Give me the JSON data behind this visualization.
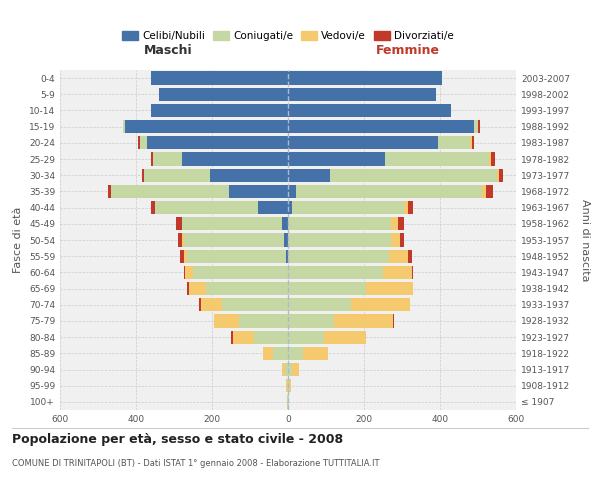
{
  "age_groups": [
    "100+",
    "95-99",
    "90-94",
    "85-89",
    "80-84",
    "75-79",
    "70-74",
    "65-69",
    "60-64",
    "55-59",
    "50-54",
    "45-49",
    "40-44",
    "35-39",
    "30-34",
    "25-29",
    "20-24",
    "15-19",
    "10-14",
    "5-9",
    "0-4"
  ],
  "birth_years": [
    "≤ 1907",
    "1908-1912",
    "1913-1917",
    "1918-1922",
    "1923-1927",
    "1928-1932",
    "1933-1937",
    "1938-1942",
    "1943-1947",
    "1948-1952",
    "1953-1957",
    "1958-1962",
    "1963-1967",
    "1968-1972",
    "1973-1977",
    "1978-1982",
    "1983-1987",
    "1988-1992",
    "1993-1997",
    "1998-2002",
    "2003-2007"
  ],
  "males": {
    "celibi": [
      0,
      0,
      0,
      0,
      0,
      0,
      0,
      0,
      0,
      5,
      10,
      15,
      80,
      155,
      205,
      280,
      370,
      430,
      360,
      340,
      360
    ],
    "coniugati": [
      2,
      3,
      8,
      40,
      90,
      130,
      175,
      215,
      250,
      260,
      265,
      265,
      270,
      310,
      175,
      75,
      20,
      5,
      0,
      0,
      0
    ],
    "vedovi": [
      0,
      2,
      8,
      25,
      55,
      65,
      55,
      45,
      20,
      10,
      5,
      0,
      0,
      0,
      0,
      0,
      0,
      0,
      0,
      0,
      0
    ],
    "divorziati": [
      0,
      0,
      0,
      0,
      5,
      0,
      5,
      5,
      5,
      10,
      10,
      15,
      10,
      10,
      5,
      5,
      5,
      0,
      0,
      0,
      0
    ]
  },
  "females": {
    "nubili": [
      0,
      0,
      0,
      0,
      0,
      0,
      0,
      0,
      0,
      0,
      0,
      0,
      10,
      20,
      110,
      255,
      395,
      490,
      430,
      390,
      405
    ],
    "coniugate": [
      2,
      3,
      10,
      40,
      95,
      120,
      165,
      205,
      250,
      265,
      270,
      270,
      295,
      490,
      440,
      275,
      85,
      10,
      0,
      0,
      0
    ],
    "vedove": [
      0,
      5,
      20,
      65,
      110,
      155,
      155,
      125,
      75,
      50,
      25,
      20,
      10,
      10,
      5,
      5,
      5,
      0,
      0,
      0,
      0
    ],
    "divorziate": [
      0,
      0,
      0,
      0,
      0,
      5,
      0,
      0,
      5,
      10,
      10,
      15,
      15,
      20,
      10,
      10,
      5,
      5,
      0,
      0,
      0
    ]
  },
  "colors": {
    "celibi": "#4472a8",
    "coniugati": "#c5d8a4",
    "vedovi": "#f5c96e",
    "divorziati": "#c0392b"
  },
  "xlim": 600,
  "title": "Popolazione per età, sesso e stato civile - 2008",
  "subtitle": "COMUNE DI TRINITAPOLI (BT) - Dati ISTAT 1° gennaio 2008 - Elaborazione TUTTITALIA.IT",
  "xlabel_left": "Maschi",
  "xlabel_right": "Femmine",
  "ylabel_left": "Fasce di età",
  "ylabel_right": "Anni di nascita",
  "legend_labels": [
    "Celibi/Nubili",
    "Coniugati/e",
    "Vedovi/e",
    "Divorziati/e"
  ],
  "background_color": "#ffffff",
  "plot_bg_color": "#f0f0f0",
  "grid_color": "#cccccc"
}
